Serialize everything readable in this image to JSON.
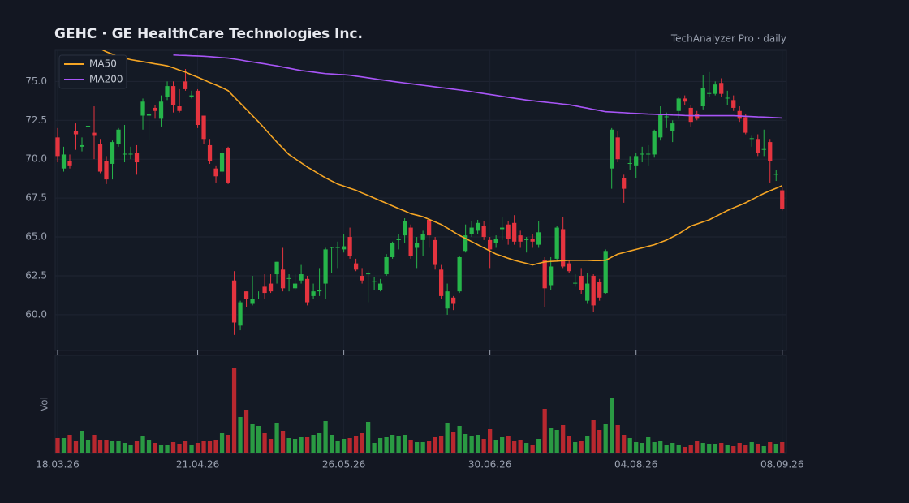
{
  "chart_data": {
    "type": "candlestick",
    "title": "GEHC  ·  GE HealthCare Technologies Inc.",
    "subtitle": "TechAnalyzer Pro · daily",
    "volume_label": "Vol",
    "up_color": "#26b54a",
    "down_color": "#e5343f",
    "volume_up_color": "#2a9a43",
    "volume_down_color": "#b8282f",
    "grid": true,
    "legend": "upper left",
    "xlim": [
      -0.4,
      119.7
    ],
    "xticks": [
      {
        "value": 0,
        "label": "18.03.26"
      },
      {
        "value": 23,
        "label": "21.04.26"
      },
      {
        "value": 47,
        "label": "26.05.26"
      },
      {
        "value": 71,
        "label": "30.06.26"
      },
      {
        "value": 95,
        "label": "04.08.26"
      },
      {
        "value": 119,
        "label": "08.09.26"
      }
    ],
    "ylim": [
      57.7,
      77
    ],
    "yticks": [
      {
        "value": 60,
        "label": "60.0"
      },
      62.5,
      {
        "value": 65,
        "label": "65.0"
      },
      67.5,
      {
        "value": 70,
        "label": "70.0"
      },
      72.5,
      {
        "value": 75,
        "label": "75.0"
      }
    ],
    "volume_lim": [
      0,
      120
    ],
    "open": [
      71.4,
      69.4,
      69.9,
      71.8,
      70.8,
      72.1,
      71.7,
      71,
      69.9,
      69.7,
      71,
      70.3,
      70.3,
      70.4,
      72.8,
      72.8,
      73.3,
      72.6,
      74,
      74.7,
      73.4,
      75,
      74,
      74.4,
      72.8,
      70.9,
      69.4,
      69.2,
      70.7,
      62.2,
      59.3,
      61.5,
      60.7,
      61.3,
      61.8,
      62,
      62.6,
      62.9,
      62.3,
      61.7,
      62.2,
      62.3,
      61.2,
      61.5,
      62,
      64.3,
      64.3,
      64.2,
      65,
      63.3,
      62.5,
      62.6,
      62.1,
      61.6,
      62.6,
      63.7,
      64.8,
      65.1,
      65.6,
      64.3,
      64.8,
      66.1,
      64.8,
      62.9,
      60.4,
      61.1,
      61.5,
      64.1,
      65.2,
      65.4,
      65.7,
      64.8,
      64.6,
      65.5,
      65.8,
      65.9,
      65.1,
      64.8,
      64.9,
      64.5,
      63.5,
      61.9,
      63.6,
      65.5,
      63.3,
      62,
      62.5,
      60.9,
      62.5,
      62.1,
      61.4,
      69.4,
      71.4,
      68.8,
      69.7,
      69.6,
      70.3,
      70.3,
      70.3,
      71.4,
      72.7,
      71.8,
      73.1,
      73.9,
      73.3,
      72.9,
      73.4,
      74.2,
      74.2,
      74.9,
      73.9,
      73.8,
      73.1,
      72.7,
      71.3,
      71.3,
      70.6,
      71.1,
      69,
      68
    ],
    "high": [
      72,
      70.8,
      70.3,
      72.3,
      71.4,
      73,
      73.4,
      71.3,
      70.2,
      71.2,
      72,
      72.2,
      70.8,
      70.9,
      73.9,
      73,
      73.5,
      74.1,
      75,
      75,
      74.5,
      75.8,
      74.4,
      74.5,
      72.8,
      71.3,
      69.6,
      70.7,
      70.8,
      62.8,
      60.9,
      61.5,
      62.5,
      61.5,
      62.6,
      62.6,
      63.4,
      64.3,
      62.6,
      62.6,
      63.2,
      62.5,
      62,
      63,
      64.3,
      64.3,
      64.7,
      65.2,
      65.6,
      63.6,
      63,
      62.8,
      62.4,
      62.3,
      63.9,
      64.7,
      65.2,
      66.2,
      65.8,
      65,
      65.4,
      66.3,
      65,
      63.2,
      62,
      61.2,
      63.8,
      65.8,
      66,
      66.1,
      66,
      65,
      65.1,
      66.3,
      66,
      66.4,
      65.4,
      65,
      65.2,
      66,
      63.7,
      63.7,
      65.7,
      66.3,
      63.5,
      62.6,
      63,
      62.7,
      62.6,
      62.3,
      64.2,
      72,
      71.8,
      69,
      70.2,
      70.4,
      70.8,
      70.9,
      71.9,
      73.4,
      73,
      72.5,
      74,
      74.1,
      73.5,
      73.1,
      75.4,
      75.6,
      75,
      75.2,
      74.4,
      74.1,
      73.4,
      72.9,
      71.5,
      71.6,
      71.9,
      71.3,
      69.3,
      68.2
    ],
    "low": [
      69.8,
      69.2,
      69.4,
      70.6,
      70.5,
      71.5,
      70,
      69.1,
      68.4,
      68.7,
      70.8,
      69.8,
      70,
      69,
      71.9,
      71.2,
      72.6,
      72.1,
      73.8,
      73,
      73,
      74.4,
      73.9,
      72,
      71,
      69.7,
      68.5,
      69,
      68.4,
      58.7,
      59,
      60.5,
      60.6,
      61,
      61,
      61.4,
      62,
      61.5,
      61.5,
      61.6,
      62,
      60.6,
      61,
      61.2,
      61,
      62.7,
      63,
      64,
      63.6,
      62.8,
      62,
      60.8,
      61.6,
      61.5,
      62.5,
      63.6,
      64.2,
      64.6,
      63.6,
      63,
      63.8,
      64.3,
      62.9,
      61,
      60,
      60.3,
      61.4,
      64,
      65,
      65.2,
      64.8,
      63,
      64.3,
      64.8,
      64.5,
      64.5,
      64.3,
      64,
      64.3,
      64.3,
      60.5,
      61.6,
      63.5,
      63,
      62.7,
      61.8,
      61.3,
      60.7,
      60.2,
      60.9,
      61.3,
      68.1,
      69.8,
      67.2,
      69.3,
      68.8,
      69.8,
      69.6,
      70.1,
      71.2,
      72,
      71.1,
      72.6,
      73.5,
      72.1,
      72.5,
      73.2,
      74,
      74.1,
      74,
      73.5,
      73.1,
      72.4,
      71.6,
      70.8,
      70.2,
      70.2,
      68.5,
      68.6,
      66.7
    ],
    "close": [
      70.2,
      70.3,
      69.6,
      71.6,
      70.9,
      72.15,
      71.5,
      69.2,
      68.7,
      71.1,
      71.9,
      70.35,
      70.35,
      69.8,
      73.7,
      72.9,
      73.1,
      73.7,
      74.7,
      73.5,
      73.1,
      74.5,
      74.1,
      72.2,
      71.3,
      69.9,
      68.9,
      70.4,
      68.5,
      59.5,
      60.8,
      61,
      61,
      61.35,
      61.4,
      61.5,
      63.4,
      61.7,
      62.35,
      62,
      62.6,
      60.8,
      61.5,
      61.6,
      64.2,
      64.35,
      64.35,
      64.4,
      63.8,
      62.9,
      62.2,
      62.65,
      62.15,
      62,
      63.7,
      64.6,
      64.85,
      66,
      63.8,
      64.6,
      65.2,
      65.1,
      63.2,
      61.2,
      61.5,
      60.7,
      63.7,
      65.1,
      65.6,
      65.9,
      65,
      64.2,
      64.9,
      65.6,
      64.9,
      64.7,
      64.7,
      64.85,
      64.7,
      65.3,
      61.7,
      63.1,
      65.6,
      63.1,
      62.8,
      62.05,
      61.6,
      62,
      60.6,
      61.1,
      64.1,
      71.9,
      70,
      68.1,
      69.75,
      70.2,
      70.35,
      70.35,
      71.8,
      72.9,
      72.75,
      72.3,
      73.9,
      73.7,
      72.4,
      72.6,
      74.6,
      74.25,
      74.8,
      74.2,
      73.95,
      73.3,
      72.6,
      71.7,
      71.35,
      70.4,
      70.65,
      69.9,
      69.05,
      66.8
    ],
    "volume": [
      18,
      18,
      22,
      15,
      27,
      16,
      22,
      16,
      16,
      14,
      14,
      12,
      10,
      14,
      20,
      16,
      12,
      10,
      10,
      13,
      11,
      14,
      10,
      12,
      15,
      15,
      16,
      24,
      22,
      104,
      44,
      53,
      35,
      33,
      24,
      17,
      37,
      27,
      18,
      17,
      19,
      19,
      22,
      24,
      39,
      22,
      14,
      17,
      18,
      20,
      24,
      38,
      12,
      18,
      19,
      22,
      20,
      22,
      16,
      13,
      13,
      14,
      19,
      21,
      37,
      26,
      33,
      23,
      20,
      22,
      17,
      29,
      16,
      19,
      21,
      15,
      16,
      12,
      10,
      17,
      54,
      30,
      28,
      34,
      21,
      13,
      14,
      20,
      40,
      28,
      35,
      68,
      34,
      22,
      18,
      13,
      12,
      19,
      13,
      14,
      10,
      12,
      10,
      7,
      9,
      14,
      12,
      11,
      11,
      12,
      9,
      8,
      12,
      9,
      13,
      11,
      8,
      13,
      11,
      13
    ],
    "series": [
      {
        "name": "MA50",
        "color": "#f5a524",
        "values": [
          null,
          null,
          null,
          null,
          null,
          null,
          null,
          77.1,
          76.9,
          76.75,
          76.6,
          76.5,
          76.4,
          76.33,
          76.27,
          76.2,
          76.13,
          76.07,
          76,
          75.87,
          75.73,
          75.6,
          75.43,
          75.27,
          75.1,
          74.93,
          74.77,
          74.6,
          74.4,
          74,
          73.6,
          73.2,
          72.8,
          72.4,
          71.97,
          71.53,
          71.1,
          70.7,
          70.3,
          70.03,
          69.77,
          69.5,
          69.27,
          69.03,
          68.8,
          68.6,
          68.4,
          68.27,
          68.13,
          68,
          67.83,
          67.67,
          67.5,
          67.33,
          67.17,
          67,
          66.83,
          66.67,
          66.5,
          66.4,
          66.3,
          66.13,
          65.97,
          65.8,
          65.57,
          65.33,
          65.1,
          64.9,
          64.7,
          64.5,
          64.3,
          64.1,
          63.9,
          63.77,
          63.63,
          63.5,
          63.4,
          63.3,
          63.2,
          63.3,
          63.4,
          63.43,
          63.45,
          63.48,
          63.5,
          63.5,
          63.5,
          63.5,
          63.48,
          63.48,
          63.5,
          63.7,
          63.9,
          64,
          64.1,
          64.2,
          64.3,
          64.4,
          64.5,
          64.65,
          64.8,
          65,
          65.2,
          65.45,
          65.7,
          65.83,
          65.97,
          66.1,
          66.3,
          66.5,
          66.7,
          66.87,
          67.03,
          67.2,
          67.4,
          67.6,
          67.8,
          67.97,
          68.13,
          68.3
        ]
      },
      {
        "name": "MA200",
        "color": "#a855f7",
        "values": [
          null,
          null,
          null,
          null,
          null,
          null,
          null,
          null,
          null,
          null,
          null,
          null,
          null,
          null,
          null,
          null,
          null,
          null,
          null,
          76.7,
          76.68,
          76.67,
          76.65,
          76.64,
          76.62,
          76.59,
          76.56,
          76.53,
          76.5,
          76.44,
          76.38,
          76.31,
          76.25,
          76.19,
          76.13,
          76.06,
          76,
          75.92,
          75.85,
          75.77,
          75.7,
          75.65,
          75.6,
          75.55,
          75.5,
          75.48,
          75.45,
          75.43,
          75.4,
          75.34,
          75.29,
          75.23,
          75.17,
          75.11,
          75.06,
          75,
          74.95,
          74.9,
          74.85,
          74.8,
          74.75,
          74.7,
          74.65,
          74.6,
          74.55,
          74.5,
          74.45,
          74.4,
          74.34,
          74.28,
          74.22,
          74.16,
          74.1,
          74.04,
          73.98,
          73.92,
          73.86,
          73.8,
          73.76,
          73.71,
          73.67,
          73.63,
          73.59,
          73.54,
          73.5,
          73.43,
          73.35,
          73.28,
          73.2,
          73.13,
          73.05,
          73.03,
          73.01,
          72.99,
          72.96,
          72.94,
          72.92,
          72.9,
          72.89,
          72.87,
          72.86,
          72.84,
          72.83,
          72.81,
          72.8,
          72.8,
          72.8,
          72.8,
          72.8,
          72.8,
          72.8,
          72.8,
          72.78,
          72.76,
          72.74,
          72.72,
          72.71,
          72.69,
          72.67,
          72.65
        ]
      }
    ]
  }
}
